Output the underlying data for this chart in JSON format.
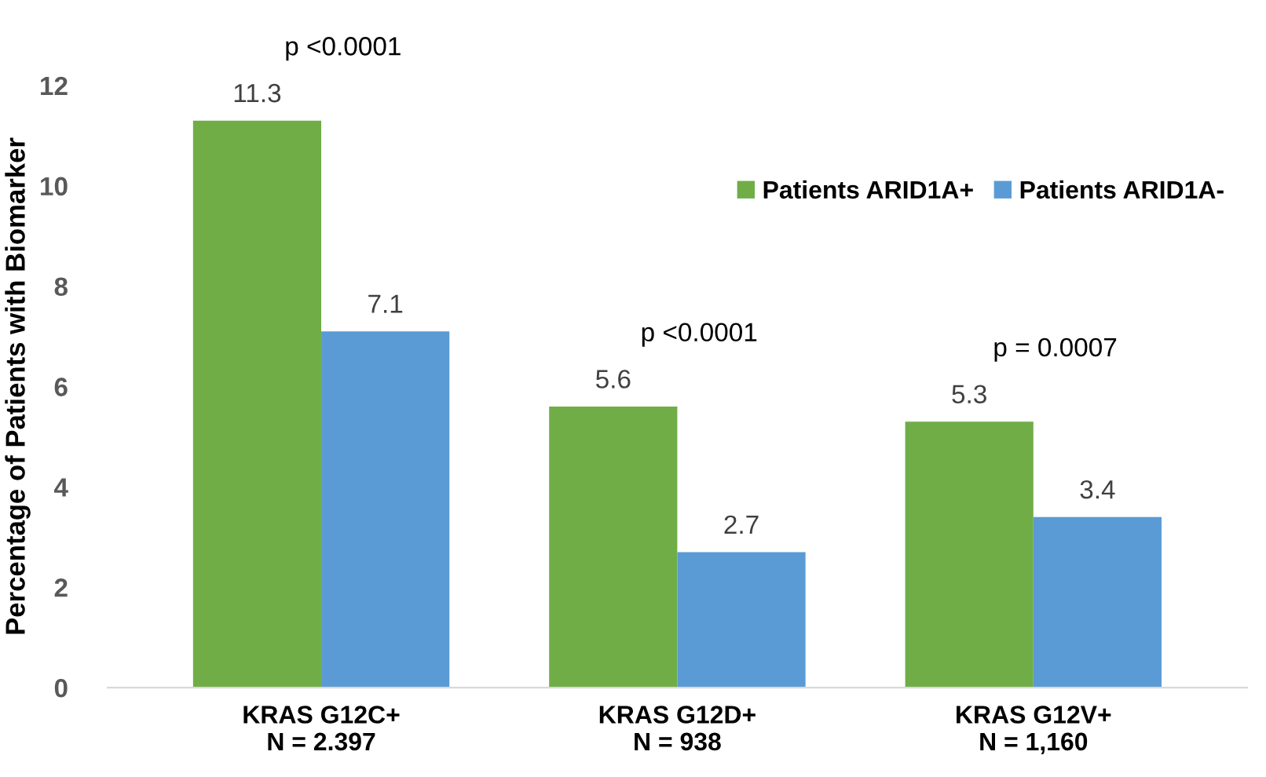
{
  "chart_data": {
    "type": "bar",
    "ylabel": "Percentage of Patients with Biomarker",
    "categories": [
      "KRAS G12C+\nN = 2.397",
      "KRAS G12D+\nN = 938",
      "KRAS G12V+\nN = 1,160"
    ],
    "series": [
      {
        "name": "Patients ARID1A+",
        "color": "#70ad47",
        "values": [
          11.3,
          5.6,
          5.3
        ]
      },
      {
        "name": "Patients ARID1A-",
        "color": "#5b9bd5",
        "values": [
          7.1,
          2.7,
          3.4
        ]
      }
    ],
    "ylim": [
      0,
      12
    ],
    "yticks": [
      0,
      2,
      4,
      6,
      8,
      10,
      12
    ],
    "grid": false,
    "legend": "top right",
    "data_labels": true,
    "annotations": [
      "p <0.0001",
      "p <0.0001",
      "p = 0.0007"
    ]
  }
}
